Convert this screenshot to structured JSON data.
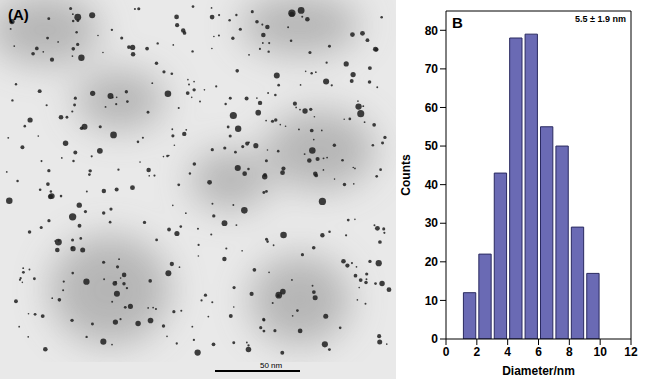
{
  "image": {
    "label": "(A)",
    "scale_bar": "50 nm"
  },
  "chart_data": {
    "type": "histogram",
    "title": "B",
    "annotation": "5.5 ± 1.9 nm",
    "x_label": "Diameter/nm",
    "y_label": "Counts",
    "bins": [
      1,
      2,
      3,
      4,
      5,
      6,
      7,
      8,
      9,
      10
    ],
    "counts": [
      12,
      22,
      43,
      78,
      79,
      55,
      50,
      29,
      17
    ],
    "color": "#6a6ab4",
    "xlim": [
      0,
      12
    ],
    "xticks": [
      0,
      2,
      4,
      6,
      8,
      10,
      12
    ],
    "ylim": [
      0,
      85
    ],
    "yticks": [
      0,
      10,
      20,
      30,
      40,
      50,
      60,
      70,
      80
    ]
  }
}
